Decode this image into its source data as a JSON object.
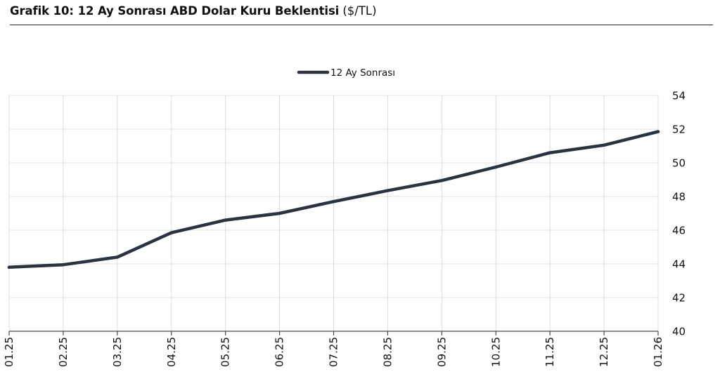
{
  "header": {
    "title": "Grafik 10: 12 Ay Sonrası ABD Dolar Kuru Beklentisi",
    "unit": "($/TL)"
  },
  "chart_data": {
    "type": "line",
    "title": "Grafik 10: 12 Ay Sonrası ABD Dolar Kuru Beklentisi ($/TL)",
    "x": [
      "01.25",
      "02.25",
      "03.25",
      "04.25",
      "05.25",
      "06.25",
      "07.25",
      "08.25",
      "09.25",
      "10.25",
      "11.25",
      "12.25",
      "01.26"
    ],
    "series": [
      {
        "name": "12 Ay Sonrası",
        "color": "#2b3240",
        "values": [
          43.8,
          43.95,
          44.4,
          45.85,
          46.6,
          47.0,
          47.7,
          48.35,
          48.95,
          49.75,
          50.6,
          51.05,
          51.85
        ]
      }
    ],
    "ylim": [
      40,
      54
    ],
    "yticks": [
      40,
      42,
      44,
      46,
      48,
      50,
      52,
      54
    ],
    "y_axis_side": "right",
    "grid": true,
    "legend": "top-center",
    "xlabel": "",
    "ylabel": ""
  }
}
